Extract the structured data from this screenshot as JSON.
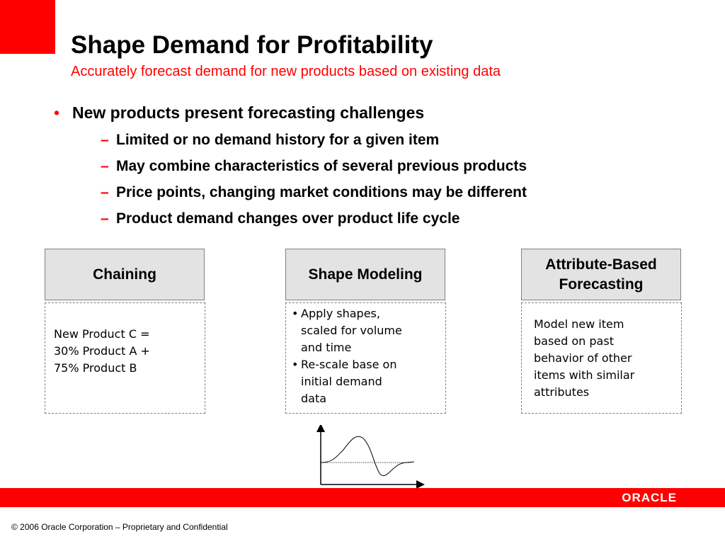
{
  "header": {
    "title": "Shape Demand for Profitability",
    "subtitle": "Accurately forecast demand for new products based on existing data"
  },
  "bullets": {
    "main_marker": "•",
    "main": "New products present forecasting challenges",
    "sub_marker": "–",
    "sub": [
      "Limited or no demand history for a given item",
      "May combine characteristics of several previous products",
      "Price points, changing market conditions may be different",
      "Product demand changes over product life cycle"
    ]
  },
  "boxes": {
    "chaining": {
      "title": "Chaining",
      "body": "New Product C =\n30% Product A +\n75% Product B"
    },
    "shape_modeling": {
      "title": "Shape Modeling",
      "bullet_marker": "•",
      "items": [
        "Apply shapes,\nscaled for volume\nand time",
        "Re-scale base on\ninitial demand\ndata"
      ]
    },
    "attribute_based": {
      "title": "Attribute-Based\nForecasting",
      "body": "Model new item\nbased on past\nbehavior of other\nitems with similar\nattributes"
    }
  },
  "footer": {
    "logo": "ORACLE",
    "copyright": "© 2006 Oracle Corporation – Proprietary and Confidential"
  },
  "colors": {
    "accent": "#ff0000",
    "box_header": "#e3e3e3",
    "border": "#808080"
  }
}
